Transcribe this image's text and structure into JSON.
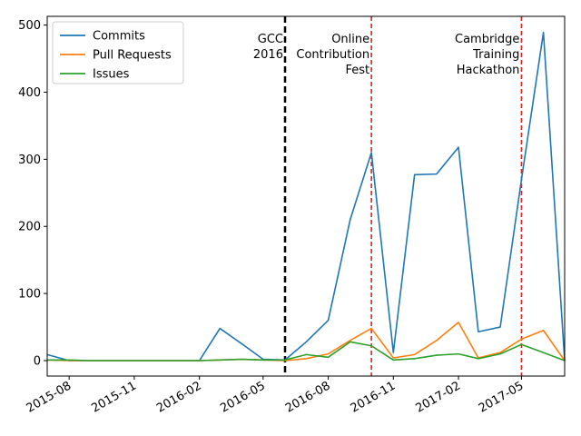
{
  "chart_data": {
    "type": "line",
    "title": "",
    "xlabel": "",
    "ylabel": "",
    "x": [
      "2015-07-01",
      "2015-08-01",
      "2015-09-01",
      "2015-10-01",
      "2015-11-01",
      "2015-12-01",
      "2016-01-01",
      "2016-02-01",
      "2016-03-01",
      "2016-04-01",
      "2016-05-01",
      "2016-06-01",
      "2016-07-01",
      "2016-08-01",
      "2016-09-01",
      "2016-10-01",
      "2016-11-01",
      "2016-12-01",
      "2017-01-01",
      "2017-02-01",
      "2017-03-01",
      "2017-04-01",
      "2017-05-01",
      "2017-06-01",
      "2017-07-01"
    ],
    "series": [
      {
        "name": "Commits",
        "color": "#1f77b4",
        "values": [
          9,
          0,
          0,
          0,
          0,
          0,
          0,
          0,
          48,
          25,
          2,
          1,
          28,
          60,
          210,
          310,
          12,
          277,
          278,
          318,
          43,
          50,
          270,
          489,
          0
        ]
      },
      {
        "name": "Pull Requests",
        "color": "#ff7f0e",
        "values": [
          1,
          0,
          0,
          0,
          0,
          0,
          0,
          0,
          1,
          2,
          1,
          0,
          3,
          10,
          30,
          48,
          4,
          9,
          30,
          57,
          4,
          12,
          32,
          45,
          0
        ]
      },
      {
        "name": "Issues",
        "color": "#2ca02c",
        "values": [
          1,
          1,
          0,
          0,
          0,
          0,
          0,
          0,
          1,
          2,
          1,
          1,
          9,
          5,
          28,
          22,
          1,
          3,
          8,
          10,
          3,
          10,
          24,
          12,
          0
        ]
      }
    ],
    "xlim": [
      "2015-07-01",
      "2017-07-01"
    ],
    "ylim": [
      -23,
      513
    ],
    "y_ticks": [
      0,
      100,
      200,
      300,
      400,
      500
    ],
    "x_ticks": [
      {
        "date": "2015-08-01",
        "label": "2015-08"
      },
      {
        "date": "2015-11-01",
        "label": "2015-11"
      },
      {
        "date": "2016-02-01",
        "label": "2016-02"
      },
      {
        "date": "2016-05-01",
        "label": "2016-05"
      },
      {
        "date": "2016-08-01",
        "label": "2016-08"
      },
      {
        "date": "2016-11-01",
        "label": "2016-11"
      },
      {
        "date": "2017-02-01",
        "label": "2017-02"
      },
      {
        "date": "2017-05-01",
        "label": "2017-05"
      }
    ],
    "events": [
      {
        "date": "2016-06-01",
        "label": "GCC 2016",
        "color": "#000000",
        "style": "dashed"
      },
      {
        "date": "2016-10-01",
        "label": "Online Contribution Fest",
        "color": "#d62728",
        "style": "dashed"
      },
      {
        "date": "2017-05-01",
        "label": "Cambridge Training Hackathon",
        "color": "#d62728",
        "style": "dashed"
      }
    ],
    "grid": false,
    "legend_position": "top-left"
  }
}
